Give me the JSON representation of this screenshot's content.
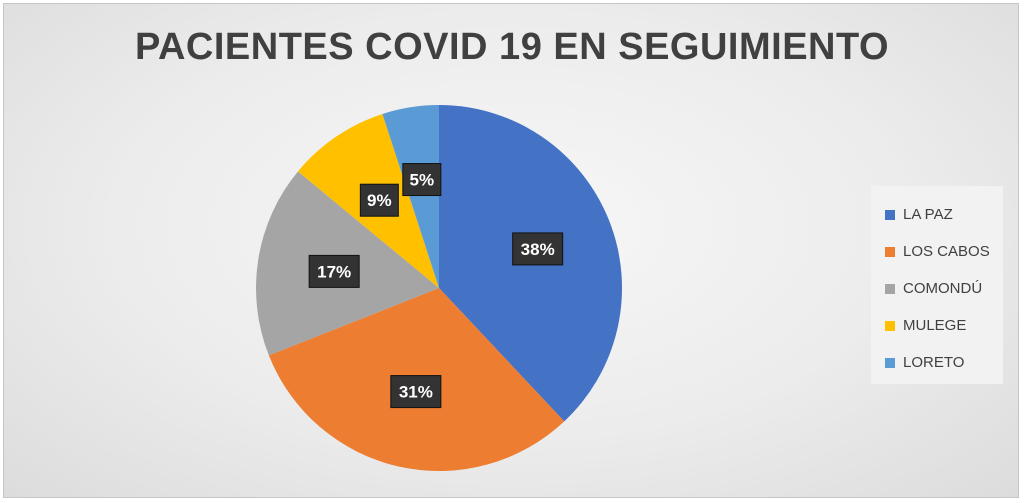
{
  "chart_data": {
    "type": "pie",
    "title": "PACIENTES COVID 19 EN SEGUIMIENTO",
    "categories": [
      "LA PAZ",
      "LOS CABOS",
      "COMONDÚ",
      "MULEGE",
      "LORETO"
    ],
    "values": [
      38,
      31,
      17,
      9,
      5
    ],
    "labels": [
      "38%",
      "31%",
      "17%",
      "9%",
      "5%"
    ],
    "colors": [
      "#4472C4",
      "#ED7D31",
      "#A5A5A5",
      "#FFC000",
      "#5B9BD5"
    ],
    "legend_position": "right"
  }
}
